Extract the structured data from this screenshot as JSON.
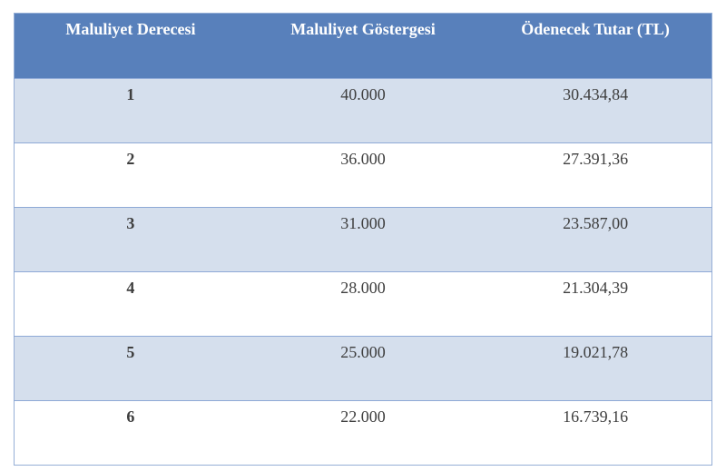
{
  "table": {
    "headers": [
      "Maluliyet Derecesi",
      "Maluliyet Göstergesi",
      "Ödenecek Tutar (TL)"
    ],
    "rows": [
      [
        "1",
        "40.000",
        "30.434,84"
      ],
      [
        "2",
        "36.000",
        "27.391,36"
      ],
      [
        "3",
        "31.000",
        "23.587,00"
      ],
      [
        "4",
        "28.000",
        "21.304,39"
      ],
      [
        "5",
        "25.000",
        "19.021,78"
      ],
      [
        "6",
        "22.000",
        "16.739,16"
      ]
    ]
  },
  "colors": {
    "header_bg": "#5880bb",
    "stripe_bg": "#d5dfed",
    "border": "#8ea9d6"
  }
}
